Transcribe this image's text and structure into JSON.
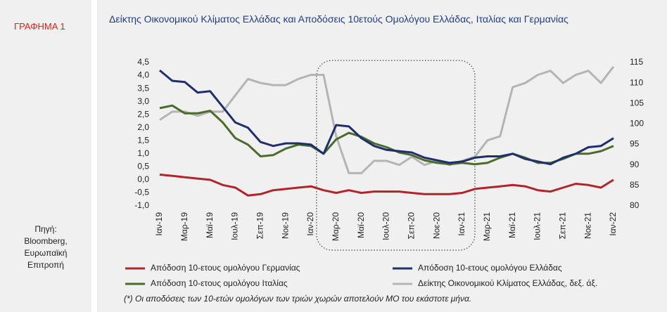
{
  "panel_label": "ΓΡΑΦΗΜΑ 1",
  "source": [
    "Πηγή:",
    "Bloomberg,",
    "Ευρωπαϊκή",
    "Επιτροπή"
  ],
  "chart_data": {
    "type": "line",
    "title": "Δείκτης Οικονομικού Κλίματος Ελλάδας και Αποδόσεις 10ετούς Ομολόγου Ελλάδας, Ιταλίας και Γερμανίας",
    "footnote": "(*) Οι αποδόσεις των 10-ετών ομολόγων των τριών χωρών αποτελούν ΜΟ του εκάστοτε μήνα.",
    "categories": [
      "Ιαν-19",
      null,
      "Μαρ-19",
      null,
      "Μαϊ-19",
      null,
      "Ιουλ-19",
      null,
      "Σεπ-19",
      null,
      "Νοε-19",
      null,
      "Ιαν-20",
      null,
      "Μαρ-20",
      null,
      "Μαϊ-20",
      null,
      "Ιουλ-20",
      null,
      "Σεπ-20",
      null,
      "Νοε-20",
      null,
      "Ιαν-21",
      null,
      "Μαρ-21",
      null,
      "Μαϊ-21",
      null,
      "Ιουλ-21",
      null,
      "Σεπ-21",
      null,
      "Νοε-21",
      null,
      "Ιαν-22"
    ],
    "series": [
      {
        "name": "Απόδοση 10-ετους ομολόγου Γερμανίας",
        "color": "#b0252a",
        "axis": "y",
        "values": [
          0.2,
          0.15,
          0.1,
          0.05,
          0.0,
          -0.2,
          -0.3,
          -0.6,
          -0.55,
          -0.4,
          -0.35,
          -0.3,
          -0.25,
          -0.4,
          -0.5,
          -0.4,
          -0.5,
          -0.45,
          -0.45,
          -0.45,
          -0.5,
          -0.55,
          -0.55,
          -0.55,
          -0.5,
          -0.35,
          -0.3,
          -0.25,
          -0.2,
          -0.25,
          -0.4,
          -0.45,
          -0.3,
          -0.15,
          -0.2,
          -0.3,
          0.0
        ]
      },
      {
        "name": "Απόδοση 10-ετους ομολόγου Ελλάδας",
        "color": "#1f2f6e",
        "axis": "y",
        "values": [
          4.2,
          3.8,
          3.75,
          3.35,
          3.4,
          2.8,
          2.2,
          2.0,
          1.45,
          1.3,
          1.4,
          1.4,
          1.35,
          1.0,
          2.1,
          2.05,
          1.6,
          1.3,
          1.15,
          1.1,
          1.05,
          0.85,
          0.75,
          0.65,
          0.7,
          0.85,
          0.9,
          0.9,
          1.0,
          0.8,
          0.7,
          0.6,
          0.85,
          1.0,
          1.25,
          1.3,
          1.6
        ]
      },
      {
        "name": "Απόδοση 10-ετους ομολόγου Ιταλίας",
        "color": "#4a6b2a",
        "axis": "y",
        "values": [
          2.75,
          2.85,
          2.55,
          2.55,
          2.65,
          2.2,
          1.6,
          1.35,
          0.9,
          0.95,
          1.2,
          1.35,
          1.3,
          1.0,
          1.55,
          1.8,
          1.65,
          1.4,
          1.25,
          1.05,
          0.95,
          0.75,
          0.65,
          0.6,
          0.65,
          0.6,
          0.65,
          0.85,
          1.0,
          0.85,
          0.65,
          0.65,
          0.8,
          1.0,
          1.0,
          1.1,
          1.3
        ]
      },
      {
        "name": "Δείκτης Οικονομικού Κλίματος Ελλάδας, δεξ. άξ.",
        "color": "#b4b4b4",
        "axis": "y2",
        "values": [
          101,
          103,
          103,
          102,
          103,
          103,
          107,
          111,
          110,
          109.5,
          109.5,
          111,
          112,
          112,
          97,
          88,
          88,
          91,
          91,
          90,
          92,
          90,
          91,
          90,
          91,
          92,
          96,
          97,
          109,
          110,
          112,
          113,
          110,
          112,
          113,
          110,
          114
        ]
      }
    ],
    "ylim": [
      -1.0,
      4.5
    ],
    "yticks": [
      {
        "value": -1.0,
        "label": "-1,0"
      },
      {
        "value": -0.5,
        "label": "-0,5"
      },
      {
        "value": 0.0,
        "label": "0,0"
      },
      {
        "value": 0.5,
        "label": "0,5"
      },
      {
        "value": 1.0,
        "label": "1,0"
      },
      {
        "value": 1.5,
        "label": "1,5"
      },
      {
        "value": 2.0,
        "label": "2,0"
      },
      {
        "value": 2.5,
        "label": "2,5"
      },
      {
        "value": 3.0,
        "label": "3,0"
      },
      {
        "value": 3.5,
        "label": "3,5"
      },
      {
        "value": 4.0,
        "label": "4,0"
      },
      {
        "value": 4.5,
        "label": "4,5"
      }
    ],
    "y2lim": [
      80,
      115
    ],
    "y2ticks": [
      80,
      85,
      90,
      95,
      100,
      105,
      110,
      115
    ]
  }
}
